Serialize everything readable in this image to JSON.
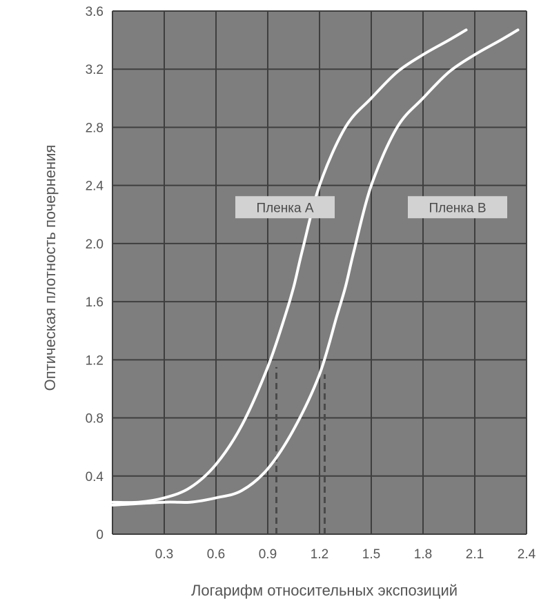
{
  "chart_data": {
    "type": "line",
    "xlabel": "Логарифм относительных экспозиций",
    "ylabel": "Оптическая плотность почернения",
    "xlim": [
      0,
      2.4
    ],
    "ylim": [
      0,
      3.6
    ],
    "x_ticks": [
      "0.3",
      "0.6",
      "0.9",
      "1.2",
      "1.5",
      "1.8",
      "2.1",
      "2.4"
    ],
    "y_ticks": [
      "0",
      "0.4",
      "0.8",
      "1.2",
      "1.6",
      "2.0",
      "2.4",
      "2.8",
      "3.2",
      "3.6"
    ],
    "grid": true,
    "series": [
      {
        "name": "Пленка A",
        "x": [
          0.0,
          0.15,
          0.3,
          0.45,
          0.6,
          0.75,
          0.9,
          1.0,
          1.05,
          1.1,
          1.2,
          1.35,
          1.5,
          1.65,
          1.8,
          1.95,
          2.05
        ],
        "y": [
          0.22,
          0.22,
          0.25,
          0.32,
          0.48,
          0.75,
          1.15,
          1.5,
          1.7,
          1.95,
          2.4,
          2.8,
          3.0,
          3.18,
          3.3,
          3.4,
          3.47
        ]
      },
      {
        "name": "Пленка B",
        "x": [
          0.0,
          0.3,
          0.45,
          0.6,
          0.75,
          0.9,
          1.05,
          1.2,
          1.3,
          1.35,
          1.4,
          1.5,
          1.65,
          1.8,
          1.95,
          2.1,
          2.25,
          2.35
        ],
        "y": [
          0.2,
          0.22,
          0.22,
          0.25,
          0.3,
          0.45,
          0.72,
          1.1,
          1.5,
          1.7,
          1.95,
          2.4,
          2.8,
          3.0,
          3.18,
          3.3,
          3.4,
          3.47
        ]
      }
    ],
    "annotations": [
      {
        "text": "Пленка A",
        "x": 1.0,
        "y": 2.25
      },
      {
        "text": "Пленка B",
        "x": 2.0,
        "y": 2.25
      }
    ],
    "reference_lines": [
      {
        "x": 0.95,
        "y_from": 0,
        "y_to": 1.15
      },
      {
        "x": 1.23,
        "y_from": 0,
        "y_to": 1.1
      }
    ]
  },
  "colors": {
    "plot_background": "#7e7e7e",
    "grid": "#3e3e3e",
    "curve": "#ffffff",
    "reference_line": "#4a4a4a",
    "label_box": "#d2d2d2",
    "text": "#555555"
  }
}
